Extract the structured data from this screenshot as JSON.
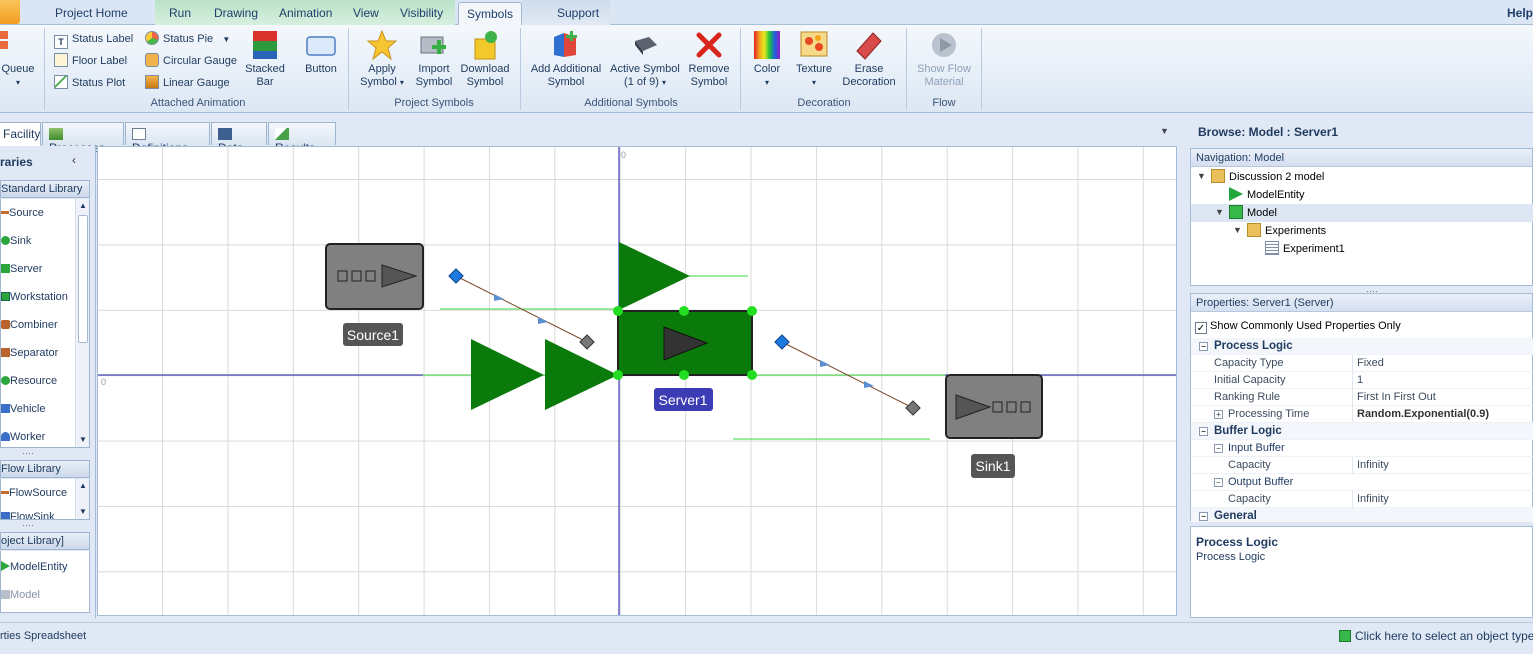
{
  "tabs": [
    "Project Home",
    "Run",
    "Drawing",
    "Animation",
    "View",
    "Visibility",
    "Symbols",
    "Support"
  ],
  "active_tab": "Symbols",
  "help_label": "Help",
  "ribbon": {
    "queue_label": "Queue",
    "attached_animation": {
      "group_label": "Attached Animation",
      "status_label": "Status Label",
      "floor_label": "Floor Label",
      "status_plot": "Status Plot",
      "status_pie": "Status Pie",
      "circular_gauge": "Circular Gauge",
      "linear_gauge": "Linear Gauge",
      "stacked_bar_1": "Stacked",
      "stacked_bar_2": "Bar",
      "button": "Button"
    },
    "project_symbols": {
      "group_label": "Project Symbols",
      "apply_1": "Apply",
      "apply_2": "Symbol",
      "import_1": "Import",
      "import_2": "Symbol",
      "download_1": "Download",
      "download_2": "Symbol"
    },
    "additional_symbols": {
      "group_label": "Additional Symbols",
      "add_1": "Add Additional",
      "add_2": "Symbol",
      "active_1": "Active Symbol",
      "active_2": "(1 of 9)",
      "remove_1": "Remove",
      "remove_2": "Symbol"
    },
    "decoration": {
      "group_label": "Decoration",
      "color": "Color",
      "texture": "Texture",
      "erase_1": "Erase",
      "erase_2": "Decoration"
    },
    "flow": {
      "group_label": "Flow",
      "show_1": "Show Flow",
      "show_2": "Material"
    }
  },
  "doc_tabs": [
    "Facility",
    "Processes",
    "Definitions",
    "Data",
    "Results"
  ],
  "libraries": {
    "header": "raries",
    "standard_library": "Standard Library",
    "standard_items": [
      "Source",
      "Sink",
      "Server",
      "Workstation",
      "Combiner",
      "Separator",
      "Resource",
      "Vehicle",
      "Worker"
    ],
    "flow_library": "Flow Library",
    "flow_items": [
      "FlowSource",
      "FlowSink"
    ],
    "project_library": "oject Library]",
    "project_items": [
      "ModelEntity",
      "Model"
    ]
  },
  "canvas": {
    "origin_x_label": "0",
    "origin_y_label": "0",
    "source_label": "Source1",
    "server_label": "Server1",
    "sink_label": "Sink1"
  },
  "right_panel": {
    "browse_title": "Browse: Model : Server1",
    "navigation_header": "Navigation: Model",
    "tree": [
      "Discussion 2 model",
      "ModelEntity",
      "Model",
      "Experiments",
      "Experiment1"
    ],
    "properties_header": "Properties: Server1 (Server)",
    "show_common_label": "Show Commonly Used Properties Only",
    "properties": [
      {
        "kind": "cat",
        "name": "Process Logic"
      },
      {
        "kind": "row",
        "name": "Capacity Type",
        "value": "Fixed"
      },
      {
        "kind": "row",
        "name": "Initial Capacity",
        "value": "1"
      },
      {
        "kind": "row",
        "name": "Ranking Rule",
        "value": "First In First Out"
      },
      {
        "kind": "row",
        "name": "Processing Time",
        "value": "Random.Exponential(0.9)"
      },
      {
        "kind": "cat",
        "name": "Buffer Logic"
      },
      {
        "kind": "sub",
        "name": "Input Buffer"
      },
      {
        "kind": "row",
        "name": "Capacity",
        "value": "Infinity"
      },
      {
        "kind": "sub",
        "name": "Output Buffer"
      },
      {
        "kind": "row",
        "name": "Capacity",
        "value": "Infinity"
      },
      {
        "kind": "cat",
        "name": "General"
      }
    ],
    "description_title": "Process Logic",
    "description_text": "Process Logic"
  },
  "status_bar": {
    "left_text": "rties Spreadsheet",
    "right_text": "Click here to select an object type"
  },
  "colors": {
    "entity_green": "#0a7a0a",
    "selected_label": "#3c3cb4",
    "node_blue": "#1f7ae0",
    "handle_green": "#22dd22"
  }
}
